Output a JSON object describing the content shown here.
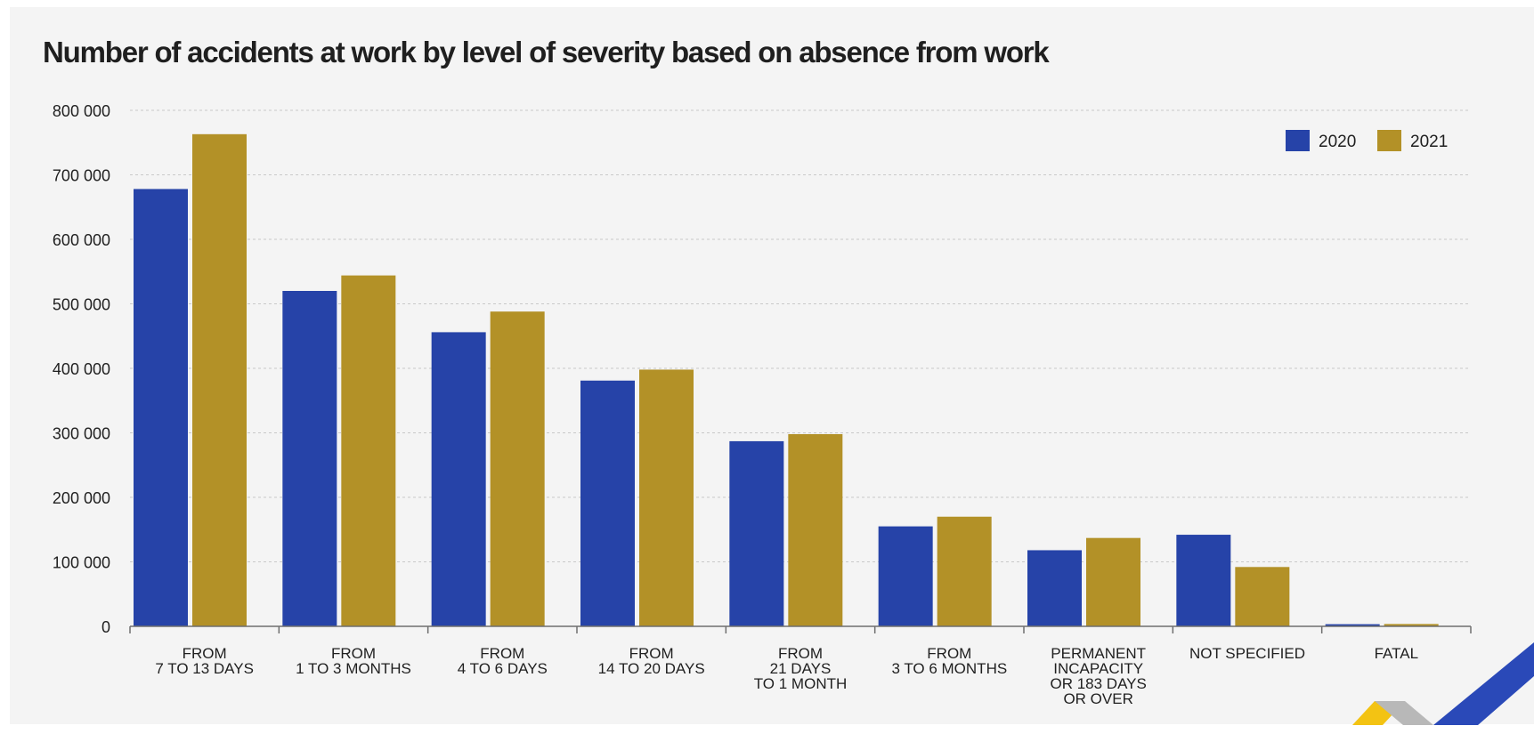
{
  "title": "Number of accidents at work by level of severity based on absence from work",
  "colors": {
    "2020": "#2643a8",
    "2021": "#b39127",
    "background": "#f4f4f4",
    "grid": "#c9c9c9",
    "text": "#1f1f1f"
  },
  "chart_data": {
    "type": "bar",
    "title": "Number of accidents at work by level of severity based on absence from work",
    "xlabel": "",
    "ylabel": "",
    "ylim": [
      0,
      800000
    ],
    "yticks": [
      0,
      100000,
      200000,
      300000,
      400000,
      500000,
      600000,
      700000,
      800000
    ],
    "ytick_labels": [
      "0",
      "100 000",
      "200 000",
      "300 000",
      "400 000",
      "500 000",
      "600 000",
      "700 000",
      "800 000"
    ],
    "grid": true,
    "legend_position": "top-right",
    "categories": [
      [
        "FROM",
        "7 TO 13 DAYS"
      ],
      [
        "FROM",
        "1 TO 3 MONTHS"
      ],
      [
        "FROM",
        "4 TO 6 DAYS"
      ],
      [
        "FROM",
        "14 TO 20 DAYS"
      ],
      [
        "FROM",
        "21 DAYS",
        "TO 1 MONTH"
      ],
      [
        "FROM",
        "3 TO 6 MONTHS"
      ],
      [
        "PERMANENT",
        "INCAPACITY",
        "OR 183 DAYS",
        "OR OVER"
      ],
      [
        "NOT SPECIFIED"
      ],
      [
        "FATAL"
      ]
    ],
    "series": [
      {
        "name": "2020",
        "color": "#2643a8",
        "values": [
          678000,
          520000,
          456000,
          381000,
          287000,
          155000,
          118000,
          142000,
          3300
        ]
      },
      {
        "name": "2021",
        "color": "#b39127",
        "values": [
          763000,
          544000,
          488000,
          398000,
          298000,
          170000,
          137000,
          92000,
          3600
        ]
      }
    ]
  }
}
